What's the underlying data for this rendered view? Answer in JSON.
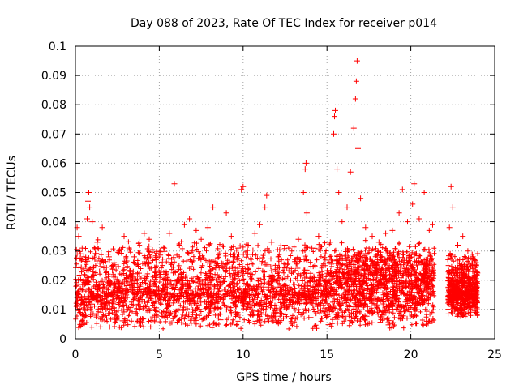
{
  "chart_data": {
    "type": "scatter",
    "title": "Day 088 of 2023, Rate Of TEC Index for receiver p014",
    "xlabel": "GPS time / hours",
    "ylabel": "ROTI / TECUs",
    "xlim": [
      0,
      25
    ],
    "ylim": [
      0,
      0.1
    ],
    "x_ticks": [
      0,
      5,
      10,
      15,
      20,
      25
    ],
    "x_tick_labels": [
      "0",
      "5",
      "10",
      "15",
      "20",
      "25"
    ],
    "y_ticks": [
      0,
      0.01,
      0.02,
      0.03,
      0.04,
      0.05,
      0.06,
      0.07,
      0.08,
      0.09,
      0.1
    ],
    "y_tick_labels": [
      "0",
      "0.01",
      "0.02",
      "0.03",
      "0.04",
      "0.05",
      "0.06",
      "0.07",
      "0.08",
      "0.09",
      "0.1"
    ],
    "grid": true,
    "marker": "+",
    "color": "#ff0000",
    "series": [
      {
        "name": "ROTI",
        "points": [
          [
            0.1,
            0.038
          ],
          [
            0.2,
            0.035
          ],
          [
            0.3,
            0.029
          ],
          [
            0.4,
            0.031
          ],
          [
            0.6,
            0.027
          ],
          [
            0.7,
            0.041
          ],
          [
            0.75,
            0.047
          ],
          [
            0.8,
            0.05
          ],
          [
            0.85,
            0.045
          ],
          [
            1.0,
            0.04
          ],
          [
            1.3,
            0.033
          ],
          [
            1.6,
            0.038
          ],
          [
            2.0,
            0.028
          ],
          [
            2.3,
            0.026
          ],
          [
            2.6,
            0.03
          ],
          [
            2.9,
            0.035
          ],
          [
            3.2,
            0.031
          ],
          [
            3.5,
            0.028
          ],
          [
            3.8,
            0.033
          ],
          [
            4.1,
            0.036
          ],
          [
            4.4,
            0.034
          ],
          [
            4.8,
            0.027
          ],
          [
            5.3,
            0.031
          ],
          [
            5.6,
            0.036
          ],
          [
            5.9,
            0.053
          ],
          [
            6.2,
            0.032
          ],
          [
            6.5,
            0.039
          ],
          [
            6.8,
            0.041
          ],
          [
            7.2,
            0.037
          ],
          [
            7.5,
            0.034
          ],
          [
            7.9,
            0.038
          ],
          [
            8.2,
            0.045
          ],
          [
            8.6,
            0.029
          ],
          [
            9.0,
            0.043
          ],
          [
            9.3,
            0.035
          ],
          [
            9.7,
            0.031
          ],
          [
            9.9,
            0.051
          ],
          [
            10.0,
            0.052
          ],
          [
            10.3,
            0.032
          ],
          [
            10.7,
            0.036
          ],
          [
            11.0,
            0.039
          ],
          [
            11.3,
            0.045
          ],
          [
            11.4,
            0.049
          ],
          [
            11.7,
            0.033
          ],
          [
            12.1,
            0.028
          ],
          [
            12.5,
            0.032
          ],
          [
            12.9,
            0.03
          ],
          [
            13.3,
            0.034
          ],
          [
            13.6,
            0.05
          ],
          [
            13.7,
            0.058
          ],
          [
            13.75,
            0.06
          ],
          [
            13.8,
            0.043
          ],
          [
            14.1,
            0.031
          ],
          [
            14.5,
            0.035
          ],
          [
            14.9,
            0.029
          ],
          [
            15.2,
            0.033
          ],
          [
            15.4,
            0.07
          ],
          [
            15.45,
            0.076
          ],
          [
            15.5,
            0.078
          ],
          [
            15.6,
            0.058
          ],
          [
            15.7,
            0.05
          ],
          [
            15.9,
            0.04
          ],
          [
            16.2,
            0.045
          ],
          [
            16.4,
            0.057
          ],
          [
            16.6,
            0.072
          ],
          [
            16.7,
            0.082
          ],
          [
            16.75,
            0.088
          ],
          [
            16.8,
            0.095
          ],
          [
            16.85,
            0.065
          ],
          [
            17.0,
            0.048
          ],
          [
            17.3,
            0.038
          ],
          [
            17.7,
            0.035
          ],
          [
            18.1,
            0.033
          ],
          [
            18.5,
            0.036
          ],
          [
            18.9,
            0.037
          ],
          [
            19.3,
            0.043
          ],
          [
            19.5,
            0.051
          ],
          [
            19.8,
            0.04
          ],
          [
            20.1,
            0.046
          ],
          [
            20.2,
            0.053
          ],
          [
            20.5,
            0.041
          ],
          [
            20.8,
            0.05
          ],
          [
            21.1,
            0.037
          ],
          [
            21.3,
            0.039
          ],
          [
            22.3,
            0.038
          ],
          [
            22.4,
            0.052
          ],
          [
            22.5,
            0.045
          ],
          [
            22.8,
            0.032
          ],
          [
            23.1,
            0.035
          ],
          [
            23.4,
            0.03
          ],
          [
            23.7,
            0.028
          ],
          [
            23.9,
            0.025
          ]
        ],
        "dense_bands": [
          {
            "x_range": [
              0.0,
              21.4
            ],
            "y_range": [
              0.006,
              0.024
            ],
            "count": 2200
          },
          {
            "x_range": [
              0.0,
              21.4
            ],
            "y_range": [
              0.018,
              0.034
            ],
            "count": 650
          },
          {
            "x_range": [
              0.0,
              21.4
            ],
            "y_range": [
              0.003,
              0.009
            ],
            "count": 250
          },
          {
            "x_range": [
              15.5,
              21.4
            ],
            "y_range": [
              0.015,
              0.032
            ],
            "count": 450
          },
          {
            "x_range": [
              22.2,
              24.0
            ],
            "y_range": [
              0.007,
              0.024
            ],
            "count": 550
          },
          {
            "x_range": [
              22.2,
              24.0
            ],
            "y_range": [
              0.018,
              0.03
            ],
            "count": 120
          }
        ]
      }
    ]
  }
}
